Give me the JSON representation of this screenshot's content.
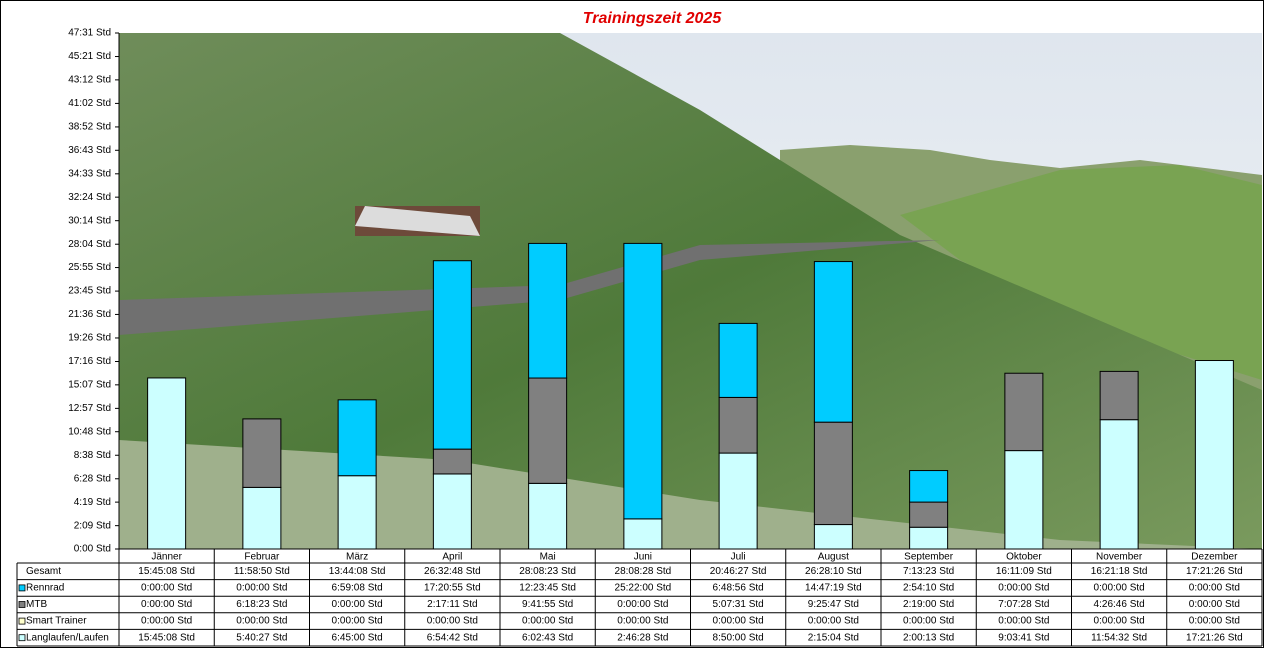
{
  "chart_data": {
    "type": "stacked-bar",
    "title": "Trainingszeit 2025",
    "categories": [
      "Jänner",
      "Februar",
      "März",
      "April",
      "Mai",
      "Juni",
      "Juli",
      "August",
      "September",
      "Oktober",
      "November",
      "Dezember"
    ],
    "totals": {
      "name": "Gesamt",
      "labels": [
        "15:45:08 Std",
        "11:58:50 Std",
        "13:44:08 Std",
        "26:32:48 Std",
        "28:08:23 Std",
        "28:08:28 Std",
        "20:46:27 Std",
        "26:28:10 Std",
        "7:13:23 Std",
        "16:11:09 Std",
        "16:21:18 Std",
        "17:21:26 Std"
      ]
    },
    "series": [
      {
        "name": "Langlaufen/Laufen",
        "color": "#ccffff",
        "values": [
          15.7522,
          5.6742,
          6.75,
          6.9117,
          6.0453,
          2.7744,
          8.8333,
          2.2511,
          2.0036,
          9.0614,
          11.9089,
          17.3572
        ],
        "value_labels": [
          "15:45:08 Std",
          "5:40:27 Std",
          "6:45:00 Std",
          "6:54:42 Std",
          "6:02:43 Std",
          "2:46:28 Std",
          "8:50:00 Std",
          "2:15:04 Std",
          "2:00:13 Std",
          "9:03:41 Std",
          "11:54:32 Std",
          "17:21:26 Std"
        ]
      },
      {
        "name": "Smart Trainer",
        "color": "#ffffcc",
        "values": [
          0,
          0,
          0,
          0,
          0,
          0,
          0,
          0,
          0,
          0,
          0,
          0
        ],
        "value_labels": [
          "0:00:00 Std",
          "0:00:00 Std",
          "0:00:00 Std",
          "0:00:00 Std",
          "0:00:00 Std",
          "0:00:00 Std",
          "0:00:00 Std",
          "0:00:00 Std",
          "0:00:00 Std",
          "0:00:00 Std",
          "0:00:00 Std",
          "0:00:00 Std"
        ]
      },
      {
        "name": "MTB",
        "color": "#808080",
        "values": [
          0,
          6.3064,
          0,
          2.2864,
          9.6986,
          0,
          5.1253,
          9.4297,
          2.3167,
          7.1244,
          4.4461,
          0
        ],
        "value_labels": [
          "0:00:00 Std",
          "6:18:23 Std",
          "0:00:00 Std",
          "2:17:11 Std",
          "9:41:55 Std",
          "0:00:00 Std",
          "5:07:31 Std",
          "9:25:47 Std",
          "2:19:00 Std",
          "7:07:28 Std",
          "4:26:46 Std",
          "0:00:00 Std"
        ]
      },
      {
        "name": "Rennrad",
        "color": "#00ccff",
        "values": [
          0,
          0,
          6.9856,
          17.3486,
          12.3958,
          25.3667,
          6.8156,
          14.7886,
          2.9028,
          0,
          0,
          0
        ],
        "value_labels": [
          "0:00:00 Std",
          "0:00:00 Std",
          "6:59:08 Std",
          "17:20:55 Std",
          "12:23:45 Std",
          "25:22:00 Std",
          "6:48:56 Std",
          "14:47:19 Std",
          "2:54:10 Std",
          "0:00:00 Std",
          "0:00:00 Std",
          "0:00:00 Std"
        ]
      }
    ],
    "ylim": [
      0,
      47.5167
    ],
    "yticks": [
      {
        "value": 0,
        "label": "0:00 Std"
      },
      {
        "value": 2.15,
        "label": "2:09 Std"
      },
      {
        "value": 4.3167,
        "label": "4:19 Std"
      },
      {
        "value": 6.4667,
        "label": "6:28 Std"
      },
      {
        "value": 8.6333,
        "label": "8:38 Std"
      },
      {
        "value": 10.8,
        "label": "10:48 Std"
      },
      {
        "value": 12.95,
        "label": "12:57 Std"
      },
      {
        "value": 15.1167,
        "label": "15:07 Std"
      },
      {
        "value": 17.2667,
        "label": "17:16 Std"
      },
      {
        "value": 19.4333,
        "label": "19:26 Std"
      },
      {
        "value": 21.6,
        "label": "21:36 Std"
      },
      {
        "value": 23.75,
        "label": "23:45 Std"
      },
      {
        "value": 25.9167,
        "label": "25:55 Std"
      },
      {
        "value": 28.0667,
        "label": "28:04 Std"
      },
      {
        "value": 30.2333,
        "label": "30:14 Std"
      },
      {
        "value": 32.4,
        "label": "32:24 Std"
      },
      {
        "value": 34.55,
        "label": "34:33 Std"
      },
      {
        "value": 36.7167,
        "label": "36:43 Std"
      },
      {
        "value": 38.8667,
        "label": "38:52 Std"
      },
      {
        "value": 41.0333,
        "label": "41:02 Std"
      },
      {
        "value": 43.2,
        "label": "43:12 Std"
      },
      {
        "value": 45.35,
        "label": "45:21 Std"
      },
      {
        "value": 47.5167,
        "label": "47:31 Std"
      }
    ]
  }
}
